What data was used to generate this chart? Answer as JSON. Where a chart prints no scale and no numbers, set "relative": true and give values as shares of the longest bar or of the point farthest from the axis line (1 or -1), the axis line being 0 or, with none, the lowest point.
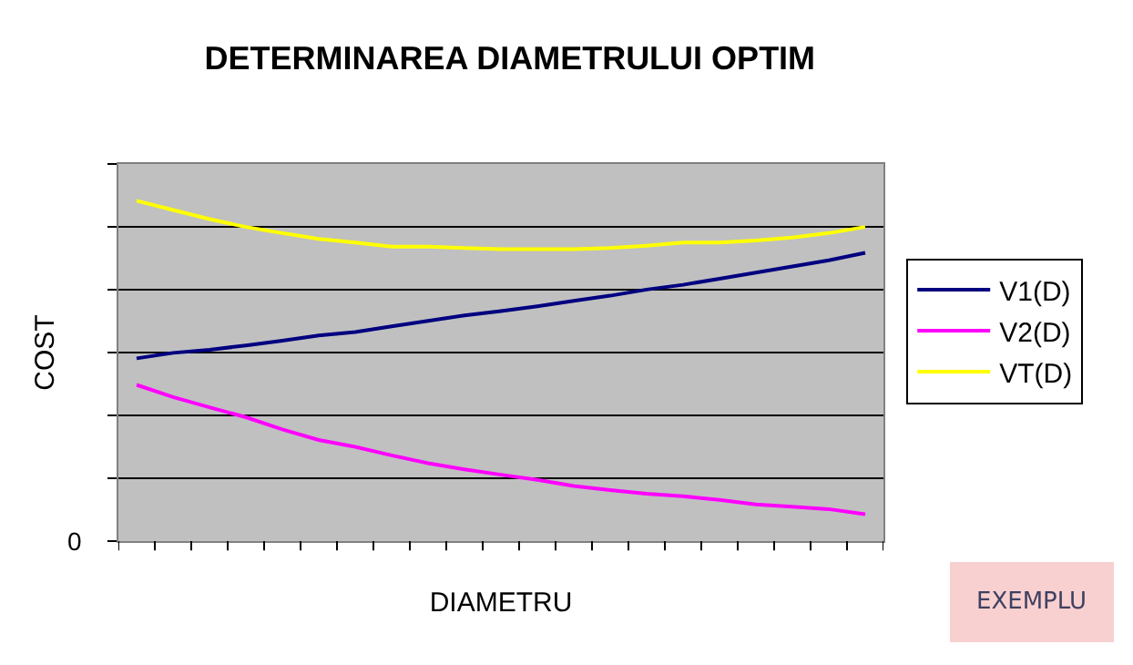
{
  "chart_data": {
    "type": "line",
    "title": "DETERMINAREA DIAMETRULUI OPTIM",
    "xlabel": "DIAMETRU",
    "ylabel": "COST",
    "relative": true,
    "grid": "y",
    "legend": "right",
    "marker": "none",
    "line_style": "solid",
    "categories": [
      null,
      null,
      null,
      null,
      null,
      null,
      null,
      null,
      null,
      null,
      null,
      null,
      null,
      null,
      null,
      null,
      null,
      null,
      null,
      null,
      null
    ],
    "series": [
      {
        "name": "V1(D)",
        "color": "#000080",
        "values": [
          0.537,
          0.553,
          0.562,
          0.575,
          0.589,
          0.604,
          0.614,
          0.631,
          0.647,
          0.663,
          0.676,
          0.69,
          0.706,
          0.721,
          0.739,
          0.753,
          0.771,
          0.789,
          0.807,
          0.825,
          0.847
        ]
      },
      {
        "name": "V2(D)",
        "color": "#ff00ff",
        "values": [
          0.459,
          0.423,
          0.393,
          0.364,
          0.328,
          0.297,
          0.277,
          0.252,
          0.229,
          0.211,
          0.195,
          0.18,
          0.162,
          0.15,
          0.139,
          0.132,
          0.121,
          0.108,
          0.101,
          0.094,
          0.079
        ]
      },
      {
        "name": "VT(D)",
        "color": "#ffff00",
        "values": [
          1,
          0.973,
          0.946,
          0.923,
          0.905,
          0.888,
          0.877,
          0.865,
          0.865,
          0.861,
          0.858,
          0.858,
          0.858,
          0.861,
          0.868,
          0.877,
          0.877,
          0.883,
          0.892,
          0.905,
          0.923
        ]
      }
    ],
    "annotations": [
      "0",
      "EXEMPLU"
    ]
  }
}
